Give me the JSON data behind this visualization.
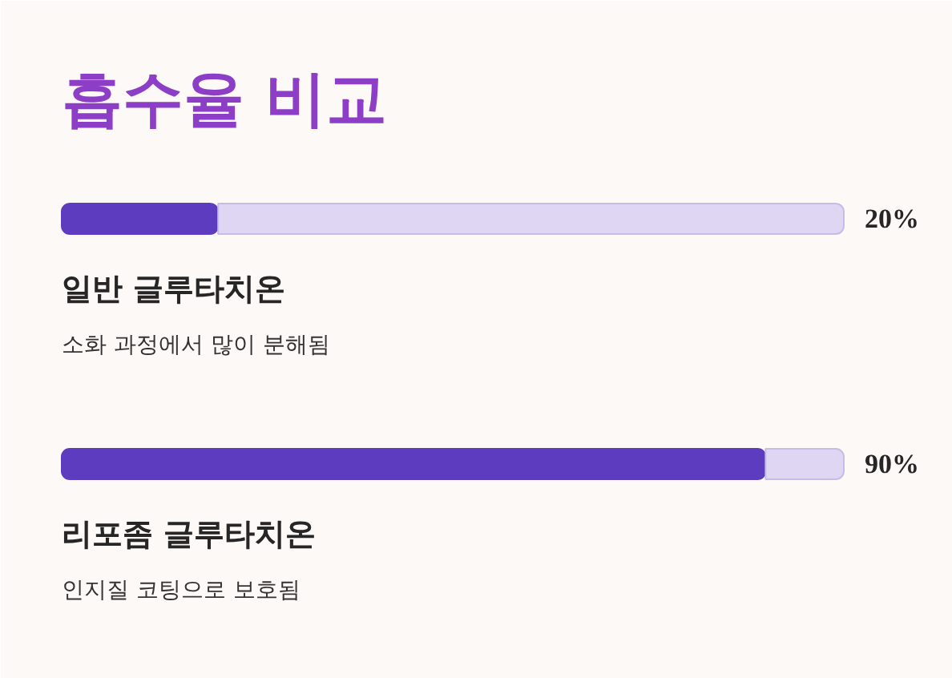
{
  "chart_data": {
    "type": "bar",
    "orientation": "horizontal",
    "stacked": true,
    "title": "흡수율 비교",
    "categories": [
      "일반 글루타치온",
      "리포좀 글루타치온"
    ],
    "series": [
      {
        "color": "#5e3cc0",
        "values": [
          20,
          90
        ],
        "value_labels": [
          "20%",
          "90%"
        ]
      },
      {
        "color": "#ded6f2",
        "values": [
          80,
          10
        ]
      }
    ],
    "annotations": [
      "소화 과정에서 많이 분해됨",
      "인지질 코팅으로 보호됨"
    ],
    "xlim": [
      0,
      100
    ],
    "tick_labels": false
  }
}
